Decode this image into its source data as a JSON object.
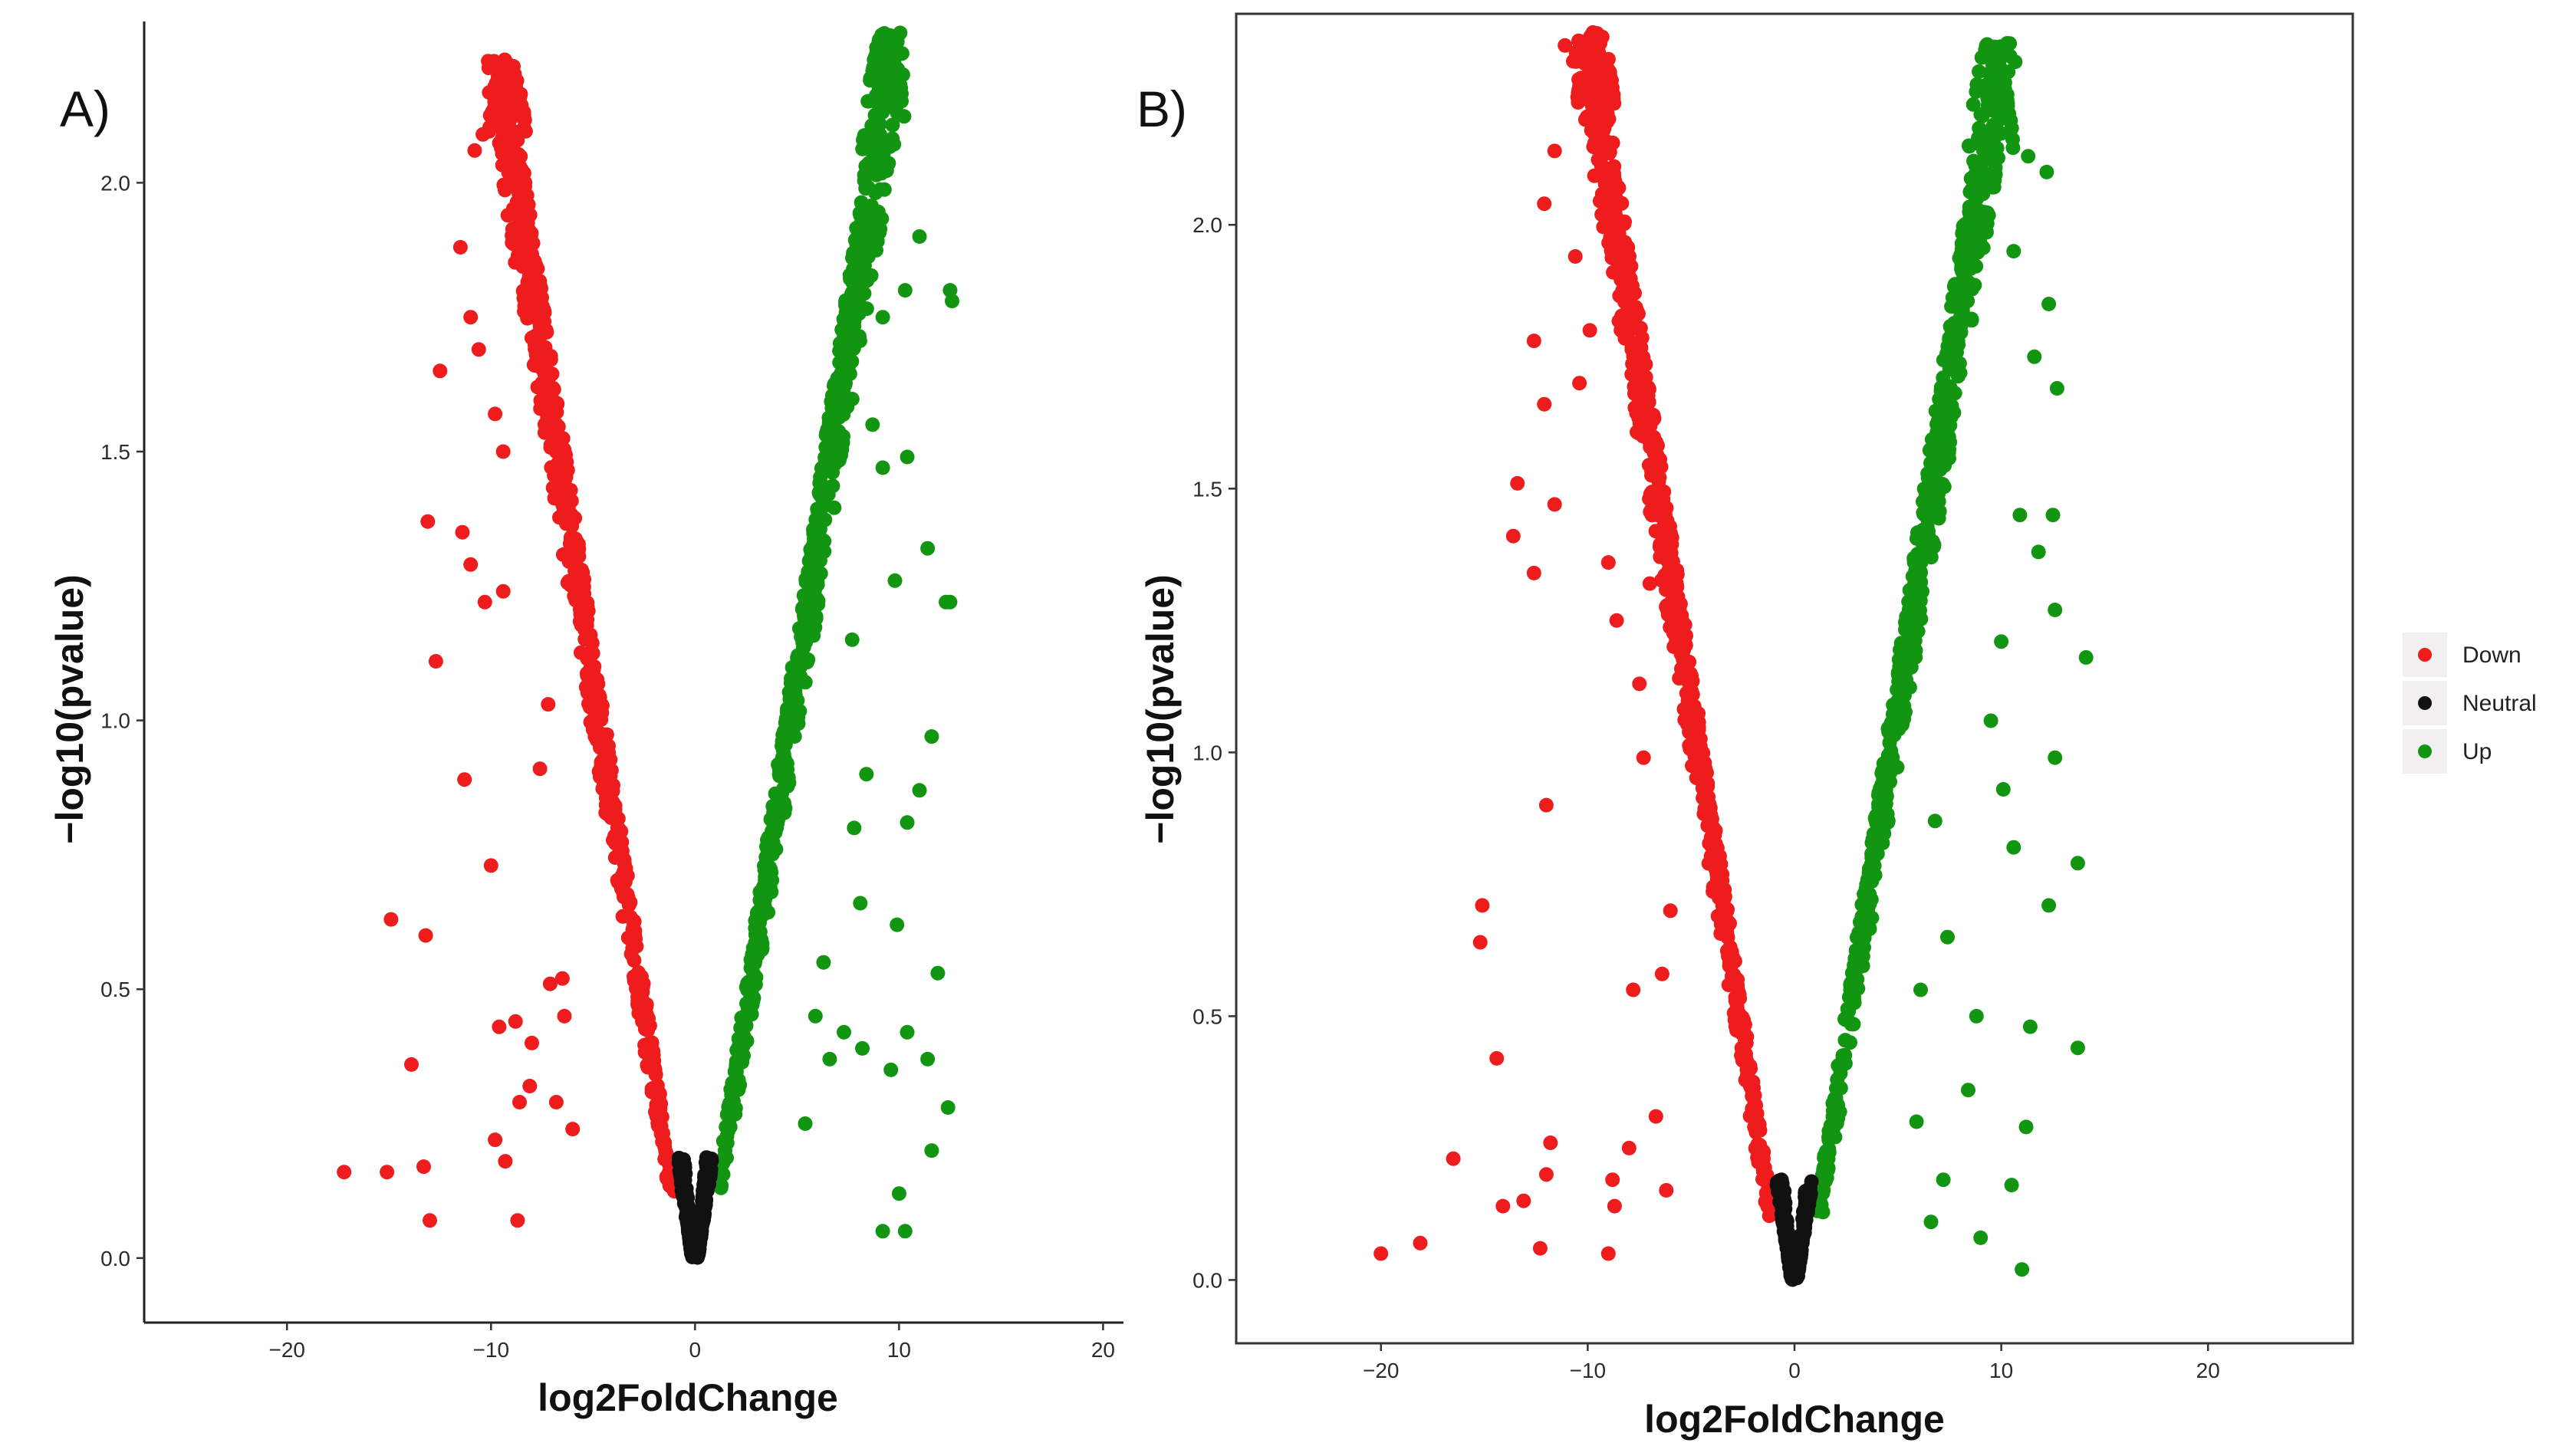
{
  "figure": {
    "legend": {
      "items": [
        {
          "label": "Down",
          "color": "#ee1c1c"
        },
        {
          "label": "Neutral",
          "color": "#111111"
        },
        {
          "label": "Up",
          "color": "#129612"
        }
      ]
    }
  },
  "chart_data": [
    {
      "type": "scatter",
      "panel_label": "A)",
      "xlabel": "log2FoldChange",
      "ylabel": "−log10(pvalue)",
      "xlim": [
        -27,
        21
      ],
      "ylim": [
        -0.12,
        2.3
      ],
      "xticks": [
        -20,
        -10,
        0,
        10,
        20
      ],
      "yticks": [
        0.0,
        0.5,
        1.0,
        1.5,
        2.0
      ],
      "xtick_labels": [
        "−20",
        "−10",
        "0",
        "10",
        "20"
      ],
      "ytick_labels": [
        "0.0",
        "0.5",
        "1.0",
        "1.5",
        "2.0"
      ],
      "frame": "left-bottom",
      "series": [
        {
          "name": "Down",
          "color": "#ee1c1c",
          "peak": [
            -9.2,
            2.23
          ],
          "points": [
            [
              -17.2,
              0.16
            ],
            [
              -15.1,
              0.16
            ],
            [
              -13.3,
              0.17
            ],
            [
              -13.0,
              0.07
            ],
            [
              -13.9,
              0.36
            ],
            [
              -14.9,
              0.63
            ],
            [
              -13.2,
              0.6
            ],
            [
              -11.3,
              0.89
            ],
            [
              -12.7,
              1.11
            ],
            [
              -13.1,
              1.37
            ],
            [
              -11.4,
              1.35
            ],
            [
              -11.0,
              1.29
            ],
            [
              -12.5,
              1.65
            ],
            [
              -11.5,
              1.88
            ],
            [
              -11.0,
              1.75
            ],
            [
              -10.6,
              1.69
            ],
            [
              -10.8,
              2.06
            ],
            [
              -10.4,
              2.09
            ],
            [
              -10.3,
              1.22
            ],
            [
              -9.4,
              1.24
            ],
            [
              -8.7,
              0.07
            ],
            [
              -9.3,
              0.18
            ],
            [
              -9.8,
              0.22
            ],
            [
              -8.6,
              0.29
            ],
            [
              -8.8,
              0.44
            ],
            [
              -9.6,
              0.43
            ],
            [
              -10.0,
              0.73
            ],
            [
              -9.8,
              1.57
            ],
            [
              -9.4,
              1.5
            ],
            [
              -8.1,
              0.32
            ],
            [
              -8.0,
              0.4
            ],
            [
              -7.1,
              0.51
            ],
            [
              -6.5,
              0.52
            ],
            [
              -7.6,
              0.91
            ],
            [
              -7.2,
              1.03
            ],
            [
              -6.8,
              0.29
            ],
            [
              -6.0,
              0.24
            ],
            [
              -6.4,
              0.45
            ]
          ]
        },
        {
          "name": "Neutral",
          "color": "#111111",
          "points": []
        },
        {
          "name": "Up",
          "color": "#129612",
          "peak": [
            9.3,
            2.28
          ],
          "points": [
            [
              9.2,
              0.05
            ],
            [
              10.0,
              0.12
            ],
            [
              10.3,
              0.05
            ],
            [
              11.6,
              0.2
            ],
            [
              12.4,
              0.28
            ],
            [
              9.6,
              0.35
            ],
            [
              10.4,
              0.42
            ],
            [
              11.4,
              0.37
            ],
            [
              11.9,
              0.53
            ],
            [
              9.9,
              0.62
            ],
            [
              10.4,
              0.81
            ],
            [
              11.0,
              0.87
            ],
            [
              11.6,
              0.97
            ],
            [
              12.3,
              1.22
            ],
            [
              12.5,
              1.22
            ],
            [
              11.4,
              1.32
            ],
            [
              12.6,
              1.78
            ],
            [
              12.5,
              1.8
            ],
            [
              10.4,
              1.49
            ],
            [
              9.2,
              1.47
            ],
            [
              9.8,
              1.26
            ],
            [
              8.1,
              0.66
            ],
            [
              8.2,
              0.39
            ],
            [
              7.3,
              0.42
            ],
            [
              6.6,
              0.37
            ],
            [
              5.4,
              0.25
            ],
            [
              5.9,
              0.45
            ],
            [
              6.3,
              0.55
            ],
            [
              7.8,
              0.8
            ],
            [
              8.4,
              0.9
            ],
            [
              7.7,
              1.15
            ],
            [
              8.7,
              1.55
            ],
            [
              9.2,
              1.75
            ],
            [
              10.3,
              1.8
            ],
            [
              11.0,
              1.9
            ]
          ]
        }
      ]
    },
    {
      "type": "scatter",
      "panel_label": "B)",
      "xlabel": "log2FoldChange",
      "ylabel": "−log10(pvalue)",
      "xlim": [
        -27,
        27
      ],
      "ylim": [
        -0.12,
        2.4
      ],
      "xticks": [
        -20,
        -10,
        0,
        10,
        20
      ],
      "yticks": [
        0.0,
        0.5,
        1.0,
        1.5,
        2.0
      ],
      "xtick_labels": [
        "−20",
        "−10",
        "0",
        "10",
        "20"
      ],
      "ytick_labels": [
        "0.0",
        "0.5",
        "1.0",
        "1.5",
        "2.0"
      ],
      "frame": "box",
      "series": [
        {
          "name": "Down",
          "color": "#ee1c1c",
          "peak": [
            -9.6,
            2.37
          ],
          "points": [
            [
              -20.0,
              0.05
            ],
            [
              -18.1,
              0.07
            ],
            [
              -16.5,
              0.23
            ],
            [
              -15.2,
              0.64
            ],
            [
              -15.1,
              0.71
            ],
            [
              -14.4,
              0.42
            ],
            [
              -14.1,
              0.14
            ],
            [
              -13.1,
              0.15
            ],
            [
              -12.3,
              0.06
            ],
            [
              -12.0,
              0.2
            ],
            [
              -11.8,
              0.26
            ],
            [
              -13.6,
              1.41
            ],
            [
              -13.4,
              1.51
            ],
            [
              -12.6,
              1.34
            ],
            [
              -12.6,
              1.78
            ],
            [
              -12.1,
              1.66
            ],
            [
              -11.6,
              1.47
            ],
            [
              -12.0,
              0.9
            ],
            [
              -12.1,
              2.04
            ],
            [
              -11.6,
              2.14
            ],
            [
              -11.1,
              2.34
            ],
            [
              -10.7,
              2.31
            ],
            [
              -10.6,
              1.94
            ],
            [
              -10.4,
              1.7
            ],
            [
              -9.0,
              0.05
            ],
            [
              -8.7,
              0.14
            ],
            [
              -8.8,
              0.19
            ],
            [
              -7.8,
              0.55
            ],
            [
              -8.0,
              0.25
            ],
            [
              -6.7,
              0.31
            ],
            [
              -6.2,
              0.17
            ],
            [
              -6.4,
              0.58
            ],
            [
              -6.0,
              0.7
            ],
            [
              -7.3,
              0.99
            ],
            [
              -7.5,
              1.13
            ],
            [
              -7.0,
              1.32
            ],
            [
              -8.6,
              1.25
            ],
            [
              -9.0,
              1.36
            ],
            [
              -9.9,
              1.8
            ]
          ]
        },
        {
          "name": "Neutral",
          "color": "#111111",
          "points": []
        },
        {
          "name": "Up",
          "color": "#129612",
          "peak": [
            9.5,
            2.35
          ],
          "points": [
            [
              13.7,
              0.79
            ],
            [
              14.1,
              1.18
            ],
            [
              13.7,
              0.44
            ],
            [
              11.0,
              0.02
            ],
            [
              10.5,
              0.18
            ],
            [
              11.2,
              0.29
            ],
            [
              12.3,
              0.71
            ],
            [
              12.6,
              0.99
            ],
            [
              12.6,
              1.27
            ],
            [
              12.7,
              1.69
            ],
            [
              12.3,
              1.85
            ],
            [
              12.5,
              1.45
            ],
            [
              11.8,
              1.38
            ],
            [
              10.6,
              0.82
            ],
            [
              10.1,
              0.93
            ],
            [
              11.4,
              0.48
            ],
            [
              9.0,
              0.08
            ],
            [
              8.4,
              0.36
            ],
            [
              8.8,
              0.5
            ],
            [
              7.2,
              0.19
            ],
            [
              6.6,
              0.11
            ],
            [
              5.9,
              0.3
            ],
            [
              6.1,
              0.55
            ],
            [
              7.4,
              0.65
            ],
            [
              6.8,
              0.87
            ],
            [
              9.5,
              1.06
            ],
            [
              10.0,
              1.21
            ],
            [
              10.9,
              1.45
            ],
            [
              11.6,
              1.75
            ],
            [
              12.2,
              2.1
            ],
            [
              11.3,
              2.13
            ],
            [
              10.6,
              1.95
            ]
          ]
        }
      ]
    }
  ]
}
